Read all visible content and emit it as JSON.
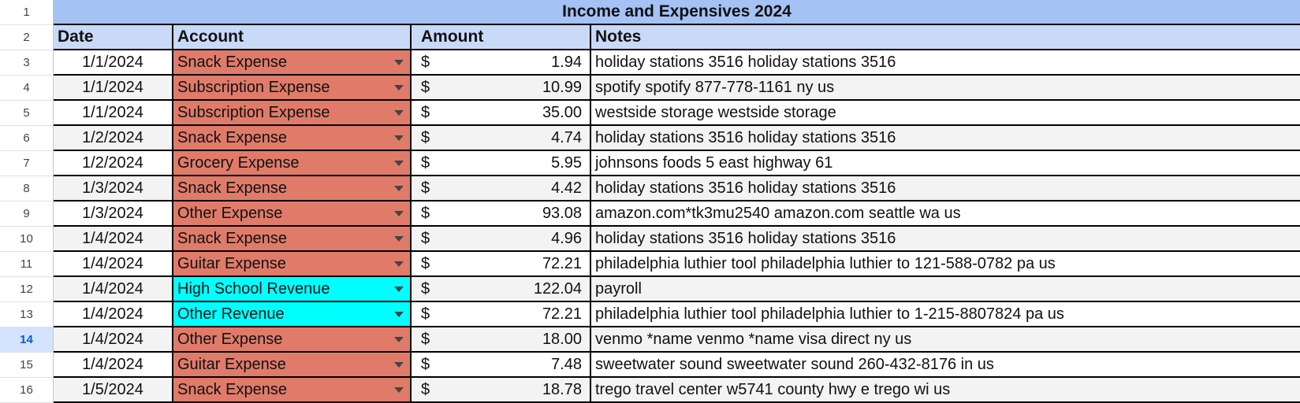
{
  "title": "Income and Expensives 2024",
  "headers": {
    "date": "Date",
    "account": "Account",
    "amount": "Amount",
    "notes": "Notes"
  },
  "selected_row": "14",
  "colors": {
    "expense": "#e07b6a",
    "revenue": "#00ffff",
    "title_bg": "#a4c2f4",
    "header_bg": "#c9daf8",
    "alt_row": "#f3f3f3"
  },
  "rows": [
    {
      "n": "3",
      "date": "1/1/2024",
      "account": "Snack Expense",
      "type": "expense",
      "currency": "$",
      "amount": "1.94",
      "notes": "holiday stations 3516 holiday stations 3516"
    },
    {
      "n": "4",
      "date": "1/1/2024",
      "account": "Subscription Expense",
      "type": "expense",
      "currency": "$",
      "amount": "10.99",
      "notes": "spotify spotify 877-778-1161 ny us"
    },
    {
      "n": "5",
      "date": "1/1/2024",
      "account": "Subscription Expense",
      "type": "expense",
      "currency": "$",
      "amount": "35.00",
      "notes": "westside storage westside storage"
    },
    {
      "n": "6",
      "date": "1/2/2024",
      "account": "Snack Expense",
      "type": "expense",
      "currency": "$",
      "amount": "4.74",
      "notes": "holiday stations 3516 holiday stations 3516"
    },
    {
      "n": "7",
      "date": "1/2/2024",
      "account": "Grocery Expense",
      "type": "expense",
      "currency": "$",
      "amount": "5.95",
      "notes": "johnsons foods 5 east highway 61"
    },
    {
      "n": "8",
      "date": "1/3/2024",
      "account": "Snack Expense",
      "type": "expense",
      "currency": "$",
      "amount": "4.42",
      "notes": "holiday stations 3516 holiday stations 3516"
    },
    {
      "n": "9",
      "date": "1/3/2024",
      "account": "Other Expense",
      "type": "expense",
      "currency": "$",
      "amount": "93.08",
      "notes": "amazon.com*tk3mu2540 amazon.com seattle wa us"
    },
    {
      "n": "10",
      "date": "1/4/2024",
      "account": "Snack Expense",
      "type": "expense",
      "currency": "$",
      "amount": "4.96",
      "notes": "holiday stations 3516 holiday stations 3516"
    },
    {
      "n": "11",
      "date": "1/4/2024",
      "account": "Guitar Expense",
      "type": "expense",
      "currency": "$",
      "amount": "72.21",
      "notes": "philadelphia luthier tool philadelphia luthier to 121-588-0782 pa us"
    },
    {
      "n": "12",
      "date": "1/4/2024",
      "account": "High School Revenue",
      "type": "revenue",
      "currency": "$",
      "amount": "122.04",
      "notes": "payroll"
    },
    {
      "n": "13",
      "date": "1/4/2024",
      "account": "Other Revenue",
      "type": "revenue",
      "currency": "$",
      "amount": "72.21",
      "notes": "philadelphia luthier tool philadelphia luthier to 1-215-8807824 pa us"
    },
    {
      "n": "14",
      "date": "1/4/2024",
      "account": "Other Expense",
      "type": "expense",
      "currency": "$",
      "amount": "18.00",
      "notes": "venmo *name venmo *name visa direct ny us"
    },
    {
      "n": "15",
      "date": "1/4/2024",
      "account": "Guitar Expense",
      "type": "expense",
      "currency": "$",
      "amount": "7.48",
      "notes": "sweetwater sound sweetwater sound 260-432-8176 in us"
    },
    {
      "n": "16",
      "date": "1/5/2024",
      "account": "Snack Expense",
      "type": "expense",
      "currency": "$",
      "amount": "18.78",
      "notes": "trego travel center w5741 county hwy e trego wi us"
    }
  ]
}
